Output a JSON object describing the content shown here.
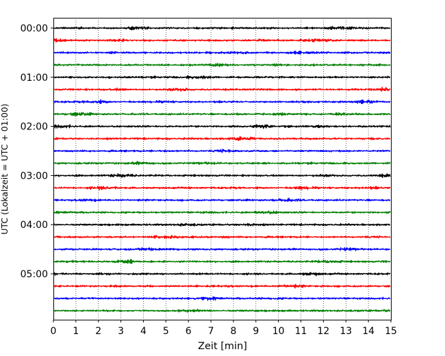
{
  "chart_data": {
    "type": "line",
    "title": "",
    "xlabel": "Zeit  [min]",
    "ylabel": "UTC (Lokalzeit = UTC + 01:00)",
    "xlim": [
      0,
      15
    ],
    "x_ticks": [
      0,
      1,
      2,
      3,
      4,
      5,
      6,
      7,
      8,
      9,
      10,
      11,
      12,
      13,
      14,
      15
    ],
    "x_tick_labels": [
      "0",
      "1",
      "2",
      "3",
      "4",
      "5",
      "6",
      "7",
      "8",
      "9",
      "10",
      "11",
      "12",
      "13",
      "14",
      "15"
    ],
    "vertical_grid": "dotted",
    "y_tick_labels": [
      "00:00",
      "01:00",
      "02:00",
      "03:00",
      "04:00",
      "05:00"
    ],
    "traces_per_hour": 4,
    "trace_minutes": 15,
    "trace_count": 24,
    "trace_colors": [
      "#000000",
      "#ff0000",
      "#0000ff",
      "#007f00"
    ],
    "description": "Helicorder-style seismogram: 24 stacked traces of 15 minutes each, from 00:00 to 05:45 UTC, with low-amplitude background noise."
  }
}
